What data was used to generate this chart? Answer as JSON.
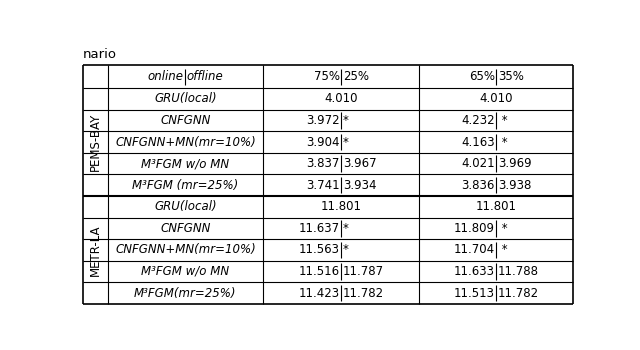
{
  "title_partial": "nario",
  "pems_label": "PEMS-BAY",
  "metr_label": "METR-LA",
  "header_col1": [
    "online",
    "offline"
  ],
  "header_col2": [
    "75%",
    "25%"
  ],
  "header_col3": [
    "65%",
    "35%"
  ],
  "rows_pems": [
    {
      "method": "GRU(local)",
      "v1_left": "4.010",
      "v1_right": "",
      "v2_left": "4.010",
      "v2_right": "",
      "has_sep1": false,
      "has_sep2": false
    },
    {
      "method": "CNFGNN",
      "v1_left": "3.972",
      "v1_right": "*",
      "v2_left": "4.232",
      "v2_right": " *",
      "has_sep1": true,
      "has_sep2": true
    },
    {
      "method": "CNFGNN+MN(mr=10%)",
      "v1_left": "3.904",
      "v1_right": "*",
      "v2_left": "4.163",
      "v2_right": " *",
      "has_sep1": true,
      "has_sep2": true
    },
    {
      "method": "M³FGM w/o MN",
      "v1_left": "3.837",
      "v1_right": "3.967",
      "v2_left": "4.021",
      "v2_right": "3.969",
      "has_sep1": true,
      "has_sep2": true
    },
    {
      "method": "M³FGM (mr=25%)",
      "v1_left": "3.741",
      "v1_right": "3.934",
      "v2_left": "3.836",
      "v2_right": "3.938",
      "has_sep1": true,
      "has_sep2": true
    }
  ],
  "rows_metr": [
    {
      "method": "GRU(local)",
      "v1_left": "11.801",
      "v1_right": "",
      "v2_left": "11.801",
      "v2_right": "",
      "has_sep1": false,
      "has_sep2": false
    },
    {
      "method": "CNFGNN",
      "v1_left": "11.637",
      "v1_right": "*",
      "v2_left": "11.809",
      "v2_right": " *",
      "has_sep1": true,
      "has_sep2": true
    },
    {
      "method": "CNFGNN+MN(mr=10%)",
      "v1_left": "11.563",
      "v1_right": "*",
      "v2_left": "11.704",
      "v2_right": " *",
      "has_sep1": true,
      "has_sep2": true
    },
    {
      "method": "M³FGM w/o MN",
      "v1_left": "11.516",
      "v1_right": "11.787",
      "v2_left": "11.633",
      "v2_right": "11.788",
      "has_sep1": true,
      "has_sep2": true
    },
    {
      "method": "M³FGM(mr=25%)",
      "v1_left": "11.423",
      "v1_right": "11.782",
      "v2_left": "11.513",
      "v2_right": "11.782",
      "has_sep1": true,
      "has_sep2": true
    }
  ],
  "background": "#ffffff",
  "line_color": "#000000",
  "font_size": 8.5
}
